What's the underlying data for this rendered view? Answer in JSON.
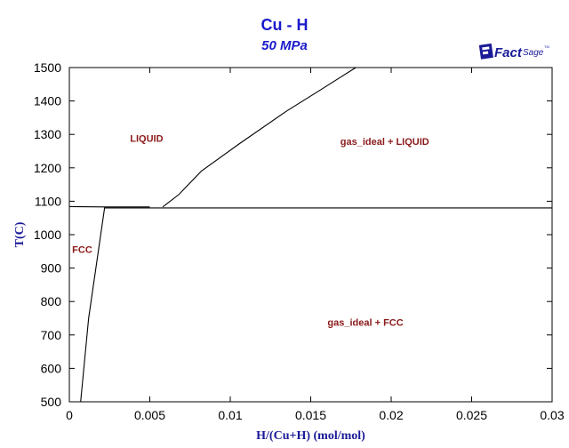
{
  "title": "Cu - H",
  "subtitle": "50 MPa",
  "logo": {
    "brand_prefix": "Fact",
    "brand_suffix": "Sage",
    "tm": "TM",
    "icon": "factsage-logo"
  },
  "colors": {
    "title": "#1a1acc",
    "axis_label": "#1a1a99",
    "region_label": "#8b1a1a",
    "lines": "#000000"
  },
  "chart_data": {
    "type": "line",
    "title": "Cu - H",
    "subtitle": "50 MPa",
    "xlabel": "H/(Cu+H) (mol/mol)",
    "ylabel": "T(C)",
    "xlim": [
      0,
      0.03
    ],
    "ylim": [
      500,
      1500
    ],
    "grid": false,
    "x_ticks": [
      0,
      0.005,
      0.01,
      0.015,
      0.02,
      0.025,
      0.03
    ],
    "x_tick_labels": [
      "0",
      "0.005",
      "0.01",
      "0.015",
      "0.02",
      "0.025",
      "0.03"
    ],
    "y_ticks": [
      500,
      600,
      700,
      800,
      900,
      1000,
      1100,
      1200,
      1300,
      1400,
      1500
    ],
    "y_tick_labels": [
      "500",
      "600",
      "700",
      "800",
      "900",
      "1000",
      "1100",
      "1200",
      "1300",
      "1400",
      "1500"
    ],
    "series": [
      {
        "values": [
          [
            0,
            1084
          ],
          [
            0.0022,
            1083
          ],
          [
            0.005,
            1083
          ]
        ]
      },
      {
        "values": [
          [
            0.0058,
            1083
          ],
          [
            0.0068,
            1120
          ],
          [
            0.0082,
            1190
          ],
          [
            0.0105,
            1270
          ],
          [
            0.0135,
            1370
          ],
          [
            0.0155,
            1430
          ],
          [
            0.0178,
            1500
          ]
        ]
      },
      {
        "values": [
          [
            0.0022,
            1083
          ],
          [
            0.0012,
            750
          ],
          [
            0.0007,
            500
          ]
        ]
      },
      {
        "values": [
          [
            0.0022,
            1080
          ],
          [
            0.03,
            1080
          ]
        ]
      }
    ],
    "annotations": [
      {
        "text": "LIQUID",
        "x": 0.0048,
        "y": 1278
      },
      {
        "text": "gas_ideal + LIQUID",
        "x": 0.0196,
        "y": 1268
      },
      {
        "text": "FCC",
        "x": 0.0008,
        "y": 945
      },
      {
        "text": "gas_ideal + FCC",
        "x": 0.0184,
        "y": 728
      }
    ]
  }
}
